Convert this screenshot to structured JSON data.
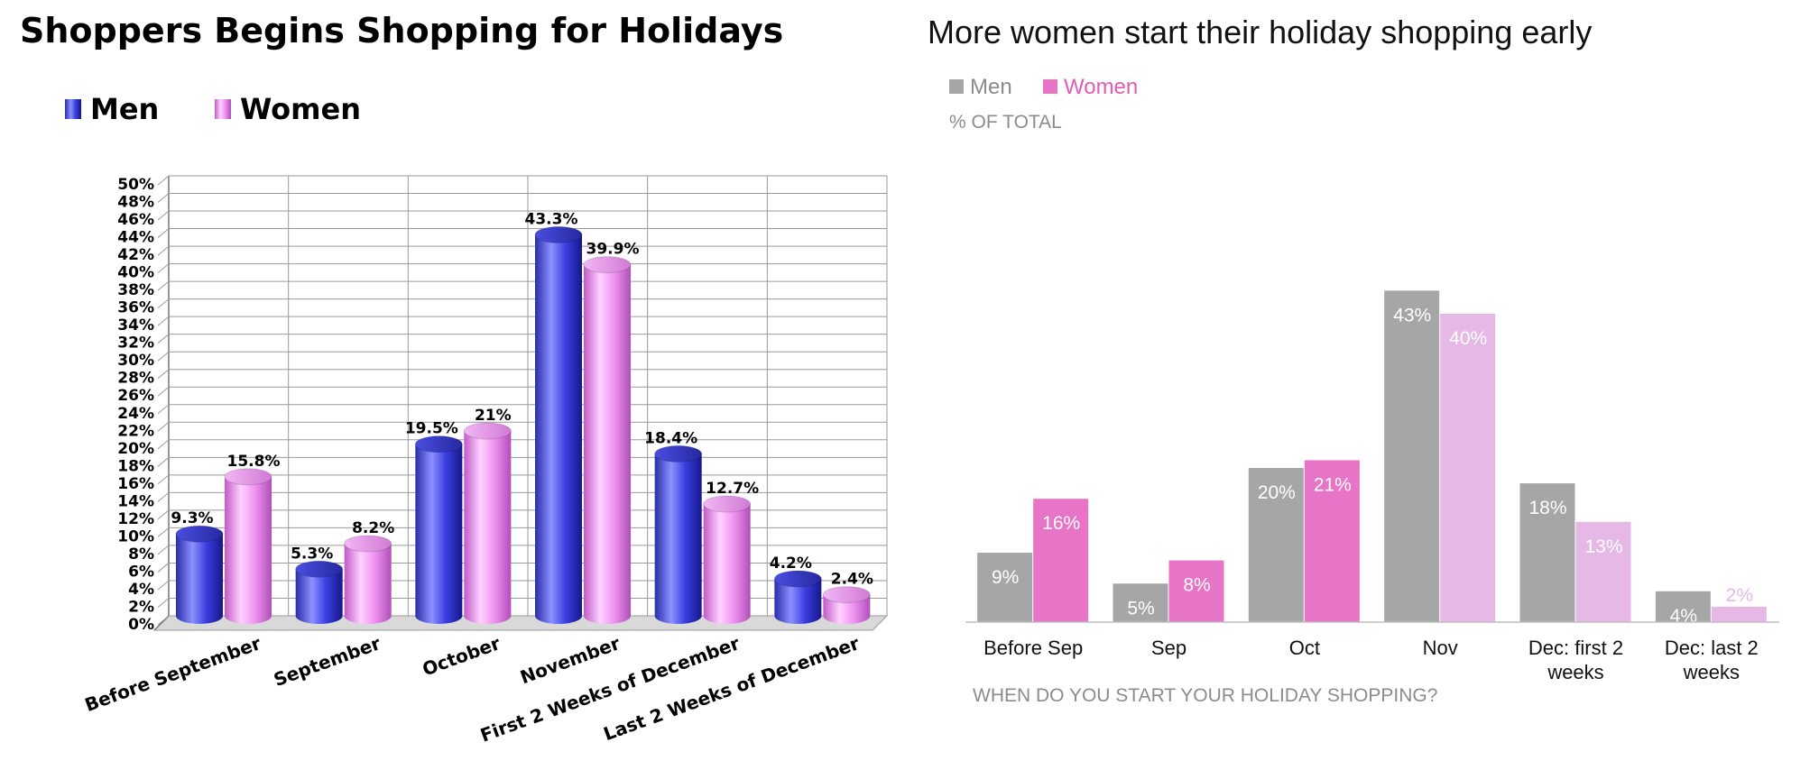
{
  "chart_data": [
    {
      "type": "bar",
      "title": "Shoppers Begins Shopping for Holidays",
      "categories": [
        "Before September",
        "September",
        "October",
        "November",
        "First 2 Weeks of December",
        "Last 2 Weeks of December"
      ],
      "series": [
        {
          "name": "Men",
          "values": [
            9.3,
            5.3,
            19.5,
            43.3,
            18.4,
            4.2
          ],
          "labels": [
            "9.3%",
            "5.3%",
            "19.5%",
            "43.3%",
            "18.4%",
            "4.2%"
          ],
          "color": "#3b3fd0"
        },
        {
          "name": "Women",
          "values": [
            15.8,
            8.2,
            21,
            39.9,
            12.7,
            2.4
          ],
          "labels": [
            "15.8%",
            "8.2%",
            "21%",
            "39.9%",
            "12.7%",
            "2.4%"
          ],
          "color": "#e58ae8"
        }
      ],
      "yticks": [
        "0%",
        "2%",
        "4%",
        "6%",
        "8%",
        "10%",
        "12%",
        "14%",
        "16%",
        "18%",
        "20%",
        "22%",
        "24%",
        "26%",
        "28%",
        "30%",
        "32%",
        "34%",
        "36%",
        "38%",
        "40%",
        "42%",
        "44%",
        "46%",
        "48%",
        "50%"
      ],
      "ylim": [
        0,
        50
      ],
      "grid": true,
      "legend_position": "top-left",
      "style": "3d-cylinder"
    },
    {
      "type": "bar",
      "title": "More women start their holiday shopping early",
      "ylabel": "% OF TOTAL",
      "xlabel": "WHEN DO YOU START YOUR HOLIDAY SHOPPING?",
      "categories": [
        "Before Sep",
        "Sep",
        "Oct",
        "Nov",
        "Dec: first 2 weeks",
        "Dec: last 2 weeks"
      ],
      "series": [
        {
          "name": "Men",
          "values": [
            9,
            5,
            20,
            43,
            18,
            4
          ],
          "labels": [
            "9%",
            "5%",
            "20%",
            "43%",
            "18%",
            "4%"
          ],
          "color": "#a6a6a6"
        },
        {
          "name": "Women",
          "values": [
            16,
            8,
            21,
            40,
            13,
            2
          ],
          "labels": [
            "16%",
            "8%",
            "21%",
            "40%",
            "13%",
            "2%"
          ],
          "color": "#e874c8",
          "light_color": "#e6b8e6"
        }
      ],
      "ylim": [
        0,
        45
      ],
      "grid": false,
      "legend_position": "top-left"
    }
  ]
}
